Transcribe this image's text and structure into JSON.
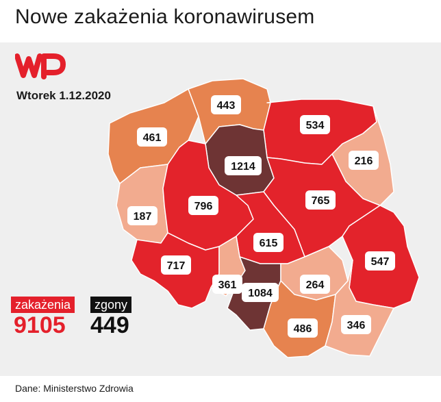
{
  "title": "Nowe zakażenia koronawirusem",
  "date": "Wtorek 1.12.2020",
  "source": "Dane: Ministerstwo Zdrowia",
  "infections": {
    "label": "zakażenia",
    "value": "9105"
  },
  "deaths": {
    "label": "zgony",
    "value": "449"
  },
  "logo": {
    "name": "wp-logo",
    "color": "#e4202b"
  },
  "regions": [
    {
      "id": "zachodniopomorskie",
      "value": "461",
      "level": "orange"
    },
    {
      "id": "pomorskie",
      "value": "443",
      "level": "orange"
    },
    {
      "id": "warminsko-mazurskie",
      "value": "534",
      "level": "red"
    },
    {
      "id": "podlaskie",
      "value": "216",
      "level": "light"
    },
    {
      "id": "kujawsko-pomorskie",
      "value": "1214",
      "level": "dark"
    },
    {
      "id": "lubuskie",
      "value": "187",
      "level": "light"
    },
    {
      "id": "wielkopolskie",
      "value": "796",
      "level": "red"
    },
    {
      "id": "mazowieckie",
      "value": "765",
      "level": "red"
    },
    {
      "id": "lodzkie",
      "value": "615",
      "level": "red"
    },
    {
      "id": "dolnoslaskie",
      "value": "717",
      "level": "red"
    },
    {
      "id": "lubelskie",
      "value": "547",
      "level": "red"
    },
    {
      "id": "opolskie",
      "value": "361",
      "level": "light"
    },
    {
      "id": "slaskie",
      "value": "1084",
      "level": "dark"
    },
    {
      "id": "swietokrzyskie",
      "value": "264",
      "level": "light"
    },
    {
      "id": "malopolskie",
      "value": "486",
      "level": "orange"
    },
    {
      "id": "podkarpackie",
      "value": "346",
      "level": "light"
    }
  ],
  "colors": {
    "dark": "#6e3434",
    "red": "#e3232b",
    "orange": "#e6834f",
    "light": "#f2ab8f",
    "border": "#ffffff"
  }
}
